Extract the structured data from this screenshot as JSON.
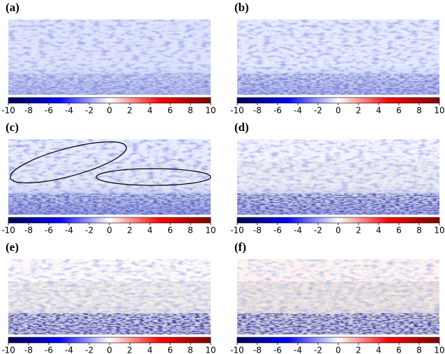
{
  "panels": [
    {
      "label": "(a)",
      "colorbar": {
        "lim": [
          -10,
          10
        ],
        "ticks": [
          -10,
          -8,
          -6,
          -4,
          -2,
          0,
          2,
          4,
          6,
          8,
          10
        ]
      }
    },
    {
      "label": "(b)",
      "colorbar": {
        "lim": [
          -10,
          10
        ],
        "ticks": [
          -10,
          -8,
          -6,
          -4,
          -2,
          0,
          2,
          4,
          6,
          8,
          10
        ]
      }
    },
    {
      "label": "(c)",
      "colorbar": {
        "lim": [
          -10,
          10
        ],
        "ticks": [
          -10,
          -8,
          -6,
          -4,
          -2,
          0,
          2,
          4,
          6,
          8,
          10
        ]
      }
    },
    {
      "label": "(d)",
      "colorbar": {
        "lim": [
          -10,
          10
        ],
        "ticks": [
          -10,
          -8,
          -6,
          -4,
          -2,
          0,
          2,
          4,
          6,
          8,
          10
        ]
      }
    },
    {
      "label": "(e)",
      "colorbar": {
        "lim": [
          -10,
          10
        ],
        "ticks": [
          -10,
          -8,
          -6,
          -4,
          -2,
          0,
          2,
          4,
          6,
          8,
          10
        ]
      }
    },
    {
      "label": "(f)",
      "colorbar": {
        "lim": [
          -10,
          10
        ],
        "ticks": [
          -10,
          -8,
          -6,
          -4,
          -2,
          0,
          2,
          4,
          6,
          8,
          10
        ]
      }
    }
  ]
}
